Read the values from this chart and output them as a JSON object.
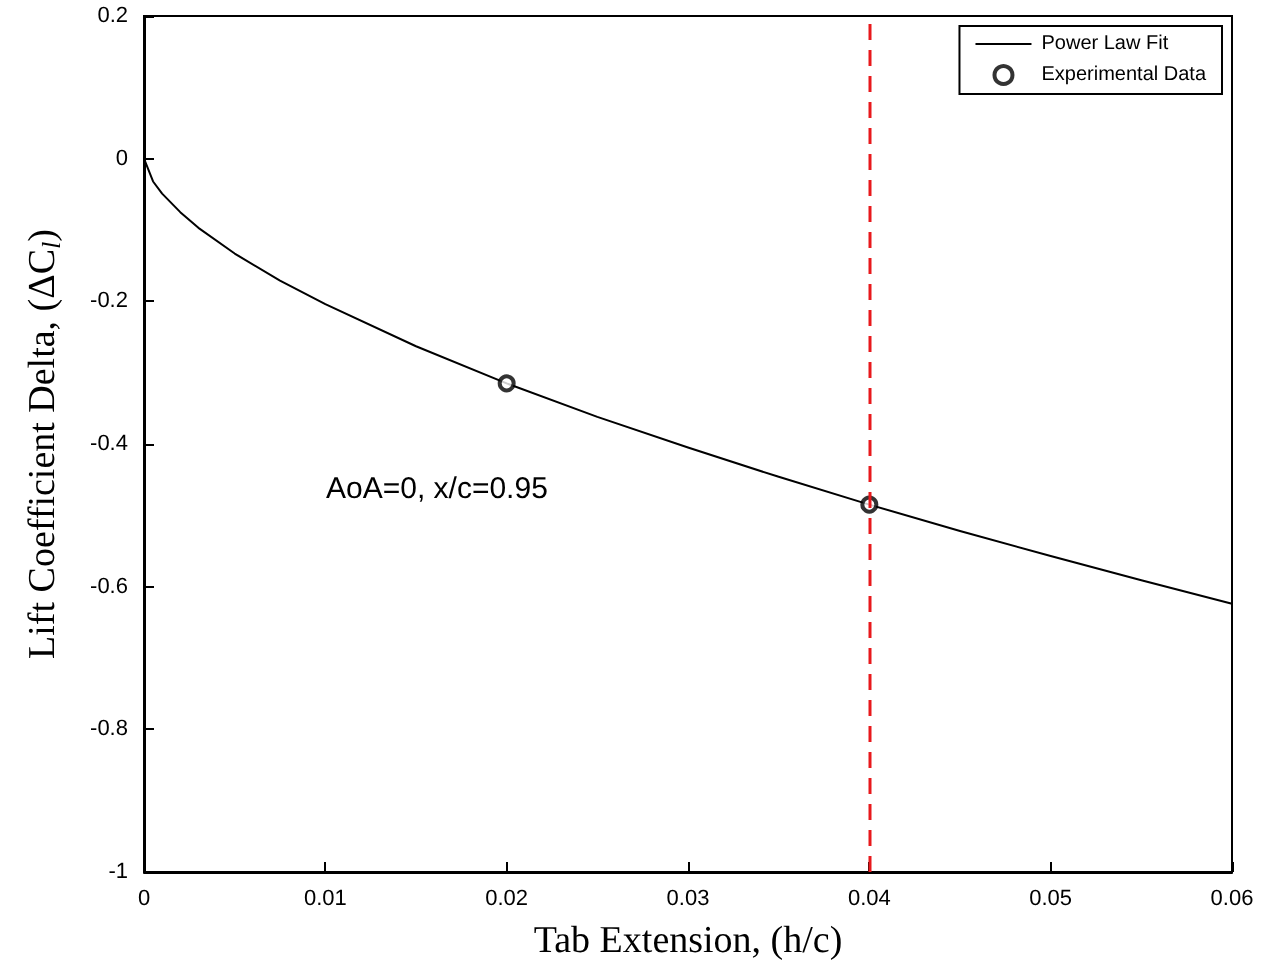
{
  "chart_data": {
    "type": "line",
    "xlabel": "Tab Extension, (h/c)",
    "ylabel": "Lift Coefficient Delta, (ΔC$_{l}$)",
    "xlim": [
      0,
      0.06
    ],
    "xticks": [
      0,
      0.01,
      0.02,
      0.03,
      0.04,
      0.05,
      0.06
    ],
    "ylim": [
      -1,
      0.2
    ],
    "yticks": [
      -1,
      -0.8,
      -0.6,
      -0.4,
      -0.2,
      0,
      0.2
    ],
    "grid": false,
    "legend": "top right",
    "series": [
      {
        "name": "Power Law Fit",
        "type": "line",
        "color": "#000000",
        "marker": "none",
        "line_style": "solid",
        "x": [
          0,
          0.0005,
          0.001,
          0.002,
          0.003,
          0.005,
          0.0075,
          0.01,
          0.015,
          0.02,
          0.025,
          0.03,
          0.035,
          0.04,
          0.045,
          0.05,
          0.055,
          0.06
        ],
        "values": [
          0,
          -0.032,
          -0.049,
          -0.075,
          -0.097,
          -0.133,
          -0.171,
          -0.204,
          -0.263,
          -0.315,
          -0.362,
          -0.405,
          -0.446,
          -0.485,
          -0.522,
          -0.557,
          -0.591,
          -0.624
        ]
      },
      {
        "name": "Experimental Data",
        "type": "scatter",
        "color": "#000000",
        "marker": "circle",
        "x": [
          0.02,
          0.04
        ],
        "values": [
          -0.315,
          -0.485
        ]
      }
    ],
    "ref_lines": [
      {
        "axis": "x",
        "value": 0.04,
        "color": "#e8191c",
        "line_style": "dashed"
      }
    ],
    "annotations": [
      "AoA=0, x/c=0.95"
    ]
  }
}
